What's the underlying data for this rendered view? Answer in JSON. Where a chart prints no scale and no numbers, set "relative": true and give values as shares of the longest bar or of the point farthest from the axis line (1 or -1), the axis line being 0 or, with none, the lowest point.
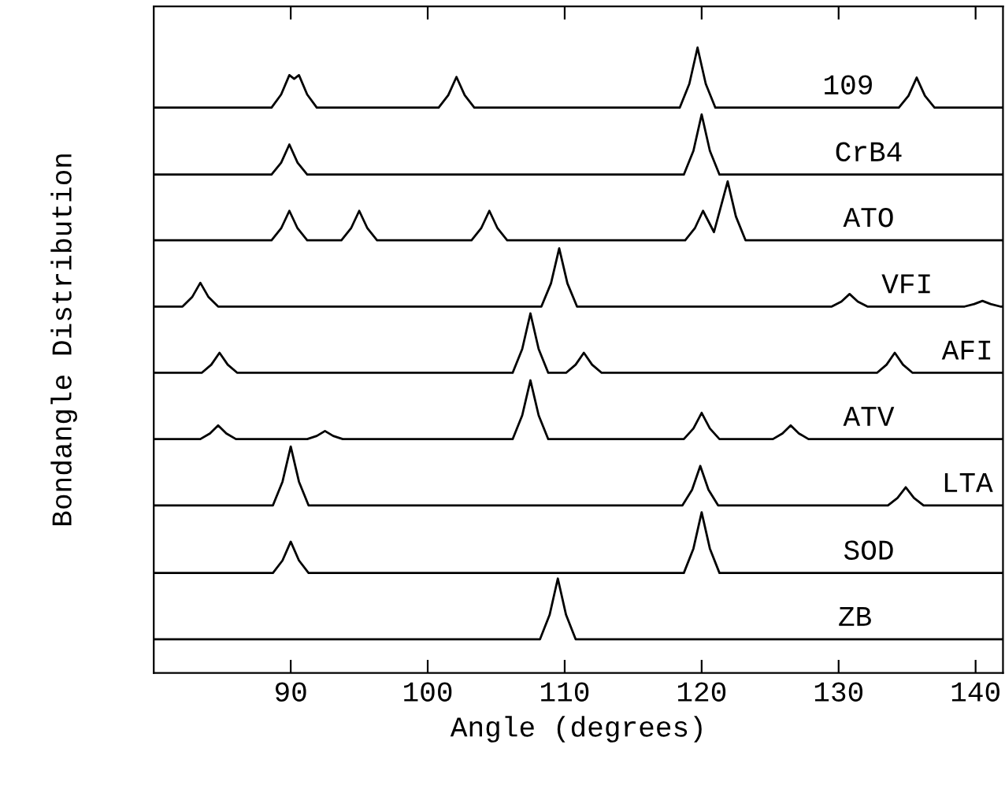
{
  "chart_data": {
    "type": "line",
    "relative": true,
    "xlabel": "Angle (degrees)",
    "ylabel": "Bondangle Distribution",
    "xlim": [
      80,
      142
    ],
    "xticks": [
      90,
      100,
      110,
      120,
      130,
      140
    ],
    "tick_labels": "x",
    "line_style": "solid",
    "series": [
      {
        "name": "109",
        "color": "#000000",
        "x": [
          80,
          88.6,
          89.3,
          89.9,
          90.25,
          90.6,
          91.2,
          91.9,
          100.8,
          101.5,
          102.1,
          102.7,
          103.4,
          118.4,
          119.1,
          119.7,
          120.3,
          121,
          134.4,
          135.1,
          135.7,
          136.3,
          137,
          142
        ],
        "values": [
          0.904,
          0.904,
          0.925,
          0.956,
          0.95,
          0.956,
          0.925,
          0.904,
          0.904,
          0.924,
          0.953,
          0.924,
          0.904,
          0.904,
          0.942,
          1.0,
          0.942,
          0.904,
          0.904,
          0.923,
          0.952,
          0.923,
          0.904,
          0.904
        ]
      },
      {
        "name": "CrB4",
        "color": "#000000",
        "x": [
          80,
          88.6,
          89.3,
          89.9,
          90.5,
          91.2,
          118.7,
          119.4,
          120,
          120.6,
          121.3,
          142
        ],
        "values": [
          0.797,
          0.797,
          0.816,
          0.845,
          0.816,
          0.797,
          0.797,
          0.835,
          0.893,
          0.835,
          0.797,
          0.797
        ]
      },
      {
        "name": "ATO",
        "color": "#000000",
        "x": [
          80,
          88.6,
          89.3,
          89.9,
          90.5,
          91.2,
          93.7,
          94.4,
          95,
          95.6,
          96.3,
          103.2,
          103.9,
          104.5,
          105.1,
          105.8,
          118.8,
          119.5,
          120.1,
          120.9,
          121.9,
          122.5,
          123.2,
          142
        ],
        "values": [
          0.692,
          0.692,
          0.711,
          0.739,
          0.711,
          0.692,
          0.692,
          0.711,
          0.739,
          0.711,
          0.692,
          0.692,
          0.711,
          0.739,
          0.711,
          0.692,
          0.692,
          0.711,
          0.739,
          0.705,
          0.786,
          0.73,
          0.692,
          0.692
        ]
      },
      {
        "name": "VFI",
        "color": "#000000",
        "x": [
          80,
          82.1,
          82.8,
          83.4,
          84,
          84.7,
          108.3,
          109,
          109.6,
          110.2,
          110.9,
          129.5,
          130.2,
          130.8,
          131.4,
          132.1,
          139.2,
          139.9,
          140.5,
          141.1,
          141.8,
          142
        ],
        "values": [
          0.586,
          0.586,
          0.601,
          0.624,
          0.601,
          0.586,
          0.586,
          0.623,
          0.679,
          0.623,
          0.586,
          0.586,
          0.594,
          0.606,
          0.594,
          0.586,
          0.586,
          0.59,
          0.595,
          0.59,
          0.586,
          0.586
        ]
      },
      {
        "name": "AFI",
        "color": "#000000",
        "x": [
          80,
          83.5,
          84.2,
          84.8,
          85.4,
          86.1,
          106.2,
          106.9,
          107.5,
          108.1,
          108.8,
          110.1,
          110.8,
          111.4,
          112,
          112.7,
          132.8,
          133.5,
          134.1,
          134.7,
          135.4,
          142
        ],
        "values": [
          0.48,
          0.48,
          0.493,
          0.512,
          0.493,
          0.48,
          0.48,
          0.518,
          0.575,
          0.518,
          0.48,
          0.48,
          0.493,
          0.512,
          0.493,
          0.48,
          0.48,
          0.493,
          0.512,
          0.493,
          0.48,
          0.48
        ]
      },
      {
        "name": "ATV",
        "color": "#000000",
        "x": [
          80,
          83.4,
          84.1,
          84.7,
          85.3,
          86,
          91.2,
          91.9,
          92.5,
          93.1,
          93.8,
          106.2,
          106.9,
          107.5,
          108.1,
          108.8,
          118.7,
          119.4,
          120,
          120.6,
          121.3,
          125.2,
          125.9,
          126.5,
          127.1,
          127.8,
          142
        ],
        "values": [
          0.374,
          0.374,
          0.383,
          0.396,
          0.383,
          0.374,
          0.374,
          0.379,
          0.387,
          0.379,
          0.374,
          0.374,
          0.412,
          0.468,
          0.412,
          0.374,
          0.374,
          0.391,
          0.416,
          0.391,
          0.374,
          0.374,
          0.383,
          0.396,
          0.383,
          0.374,
          0.374
        ]
      },
      {
        "name": "LTA",
        "color": "#000000",
        "x": [
          80,
          88.7,
          89.4,
          90,
          90.6,
          91.3,
          118.6,
          119.3,
          119.9,
          120.5,
          121.2,
          133.6,
          134.3,
          134.9,
          135.5,
          136.2,
          142
        ],
        "values": [
          0.268,
          0.268,
          0.306,
          0.362,
          0.306,
          0.268,
          0.268,
          0.293,
          0.331,
          0.293,
          0.268,
          0.268,
          0.28,
          0.297,
          0.28,
          0.268,
          0.268
        ]
      },
      {
        "name": "SOD",
        "color": "#000000",
        "x": [
          80,
          88.7,
          89.4,
          90,
          90.6,
          91.3,
          118.7,
          119.4,
          120,
          120.6,
          121.3,
          142
        ],
        "values": [
          0.16,
          0.16,
          0.18,
          0.21,
          0.18,
          0.16,
          0.16,
          0.199,
          0.257,
          0.199,
          0.16,
          0.16
        ]
      },
      {
        "name": "ZB",
        "color": "#000000",
        "x": [
          80,
          108.2,
          108.9,
          109.5,
          110.1,
          110.8,
          142
        ],
        "values": [
          0.054,
          0.054,
          0.093,
          0.151,
          0.093,
          0.054,
          0.054
        ]
      }
    ]
  }
}
